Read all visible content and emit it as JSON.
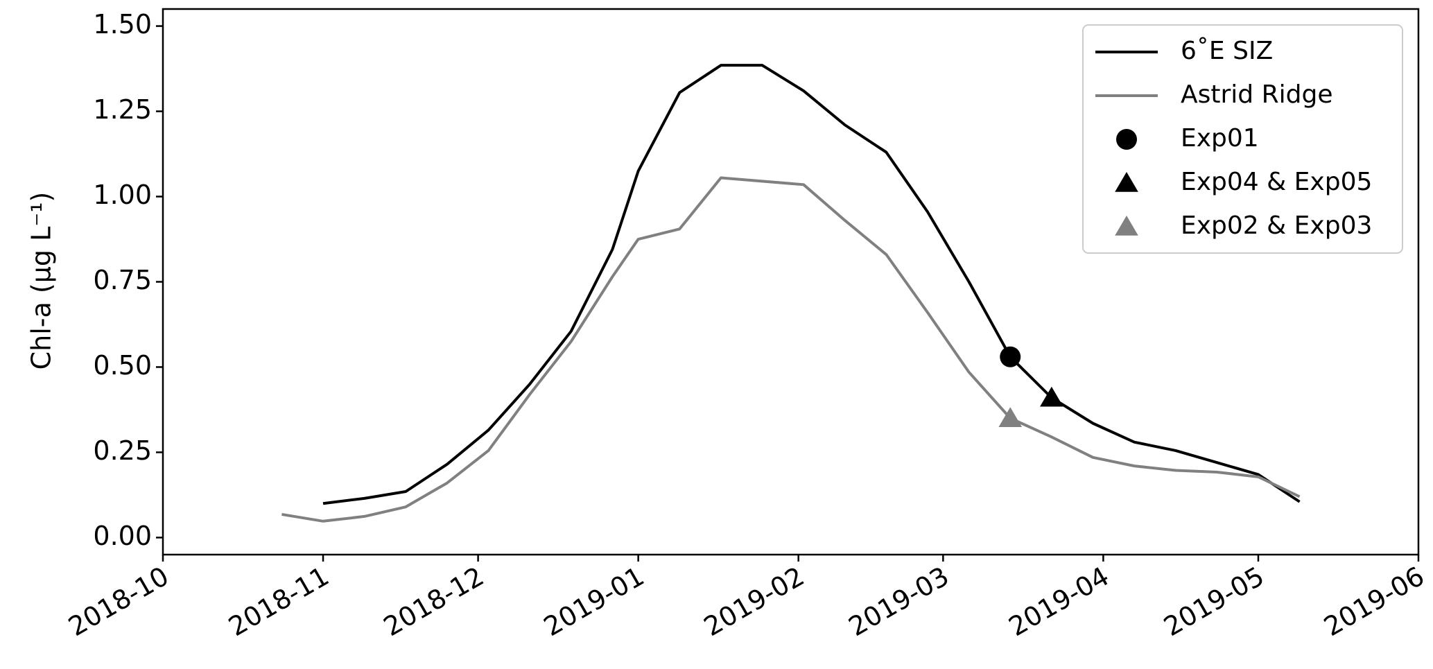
{
  "chart_data": {
    "type": "line",
    "ylabel": "Chl-a (μg L⁻¹)",
    "xlim": [
      0,
      243
    ],
    "xticks": [
      {
        "value": 0,
        "label": "2018-10"
      },
      {
        "value": 31,
        "label": "2018-11"
      },
      {
        "value": 61,
        "label": "2018-12"
      },
      {
        "value": 92,
        "label": "2019-01"
      },
      {
        "value": 123,
        "label": "2019-02"
      },
      {
        "value": 151,
        "label": "2019-03"
      },
      {
        "value": 182,
        "label": "2019-04"
      },
      {
        "value": 212,
        "label": "2019-05"
      },
      {
        "value": 243,
        "label": "2019-06"
      }
    ],
    "ylim": [
      -0.05,
      1.55
    ],
    "yticks": [
      {
        "value": 0,
        "label": "0.00"
      },
      0.25,
      {
        "value": 0.5,
        "label": "0.50"
      },
      0.75,
      {
        "value": 1,
        "label": "1.00"
      },
      1.25,
      {
        "value": 1.5,
        "label": "1.50"
      }
    ],
    "legend": "upper right",
    "series": [
      {
        "name": "6˚E SIZ",
        "color": "#000000",
        "marker": "line",
        "x": [
          31,
          39,
          47,
          55,
          63,
          71,
          79,
          87,
          92,
          100,
          108,
          116,
          124,
          132,
          140,
          148,
          156,
          164,
          172,
          180,
          188,
          196,
          204,
          212,
          220
        ],
        "values": [
          0.1,
          0.115,
          0.135,
          0.215,
          0.315,
          0.45,
          0.605,
          0.845,
          1.075,
          1.305,
          1.385,
          1.385,
          1.31,
          1.21,
          1.13,
          0.955,
          0.75,
          0.53,
          0.41,
          0.335,
          0.28,
          0.255,
          0.22,
          0.185,
          0.105
        ]
      },
      {
        "name": "Astrid Ridge",
        "color": "#808080",
        "marker": "line",
        "x": [
          23,
          31,
          39,
          47,
          55,
          63,
          71,
          79,
          87,
          92,
          100,
          108,
          124,
          132,
          140,
          148,
          156,
          164,
          172,
          180,
          188,
          196,
          204,
          212,
          220
        ],
        "values": [
          0.068,
          0.048,
          0.062,
          0.09,
          0.16,
          0.255,
          0.42,
          0.575,
          0.765,
          0.875,
          0.905,
          1.055,
          1.035,
          0.93,
          0.83,
          0.66,
          0.485,
          0.35,
          0.295,
          0.235,
          0.21,
          0.197,
          0.192,
          0.178,
          0.12
        ]
      },
      {
        "name": "Exp01",
        "color": "#000000",
        "marker": "circle",
        "x": [
          164
        ],
        "values": [
          0.53
        ]
      },
      {
        "name": "Exp04 & Exp05",
        "color": "#000000",
        "marker": "triangle",
        "x": [
          172
        ],
        "values": [
          0.41
        ]
      },
      {
        "name": "Exp02 & Exp03",
        "color": "#808080",
        "marker": "triangle",
        "x": [
          164
        ],
        "values": [
          0.35
        ]
      }
    ]
  }
}
